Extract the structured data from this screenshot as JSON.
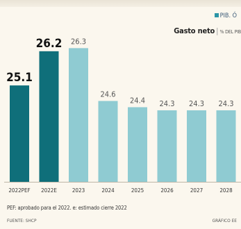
{
  "header": {
    "legend_label": "PIB. Ó",
    "subtitle": "Gasto neto",
    "subtitle_unit": "% DEL PIB"
  },
  "footnote": "PEF: aprobado para el 2022. e: estimado cierre 2022",
  "source": "FUENTE: SHCP",
  "credit": "GRÁFICO EE",
  "colors": {
    "highlight": "#0f6f7a",
    "normal": "#8fcbd2",
    "background": "#fbf7ee"
  },
  "chart_data": {
    "type": "bar",
    "title": "",
    "xlabel": "",
    "ylabel": "",
    "categories": [
      "2022PEF",
      "2022E",
      "2023",
      "2024",
      "2025",
      "2026",
      "2027",
      "2028"
    ],
    "values": [
      25.1,
      26.2,
      26.3,
      24.6,
      24.4,
      24.3,
      24.3,
      24.3
    ],
    "value_labels": [
      "25.1",
      "26.2",
      "26.3",
      "24.6",
      "24.4",
      "24.3",
      "24.3",
      "24.3"
    ],
    "highlighted": [
      true,
      true,
      false,
      false,
      false,
      false,
      false,
      false
    ],
    "ylim": [
      22.0,
      27.0
    ],
    "grid": false,
    "legend": "top-right"
  }
}
